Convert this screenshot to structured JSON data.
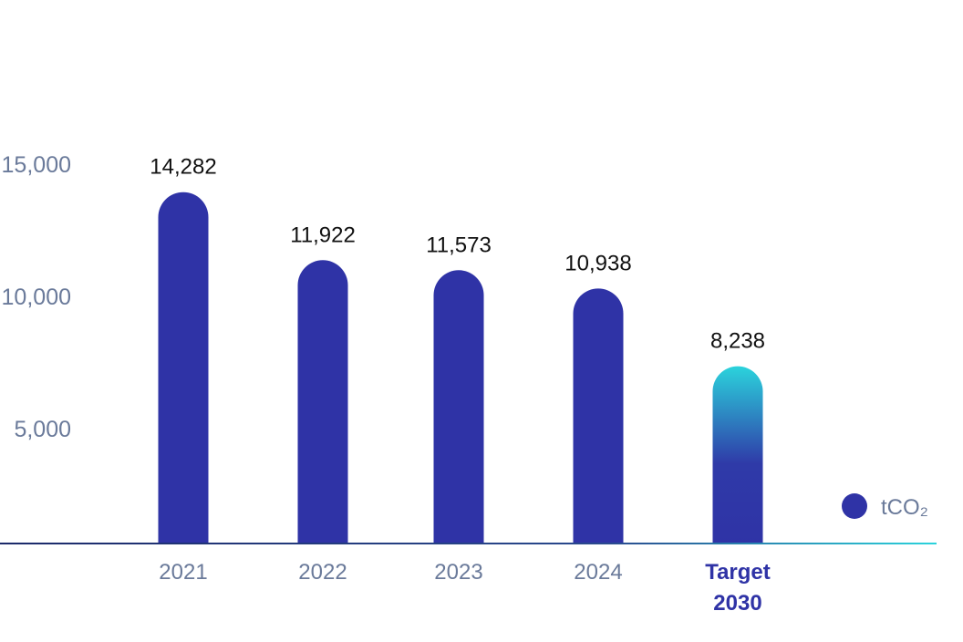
{
  "chart_data": {
    "type": "bar",
    "title": "",
    "xlabel": "",
    "ylabel": "",
    "categories": [
      "2021",
      "2022",
      "2023",
      "2024",
      "Target 2030"
    ],
    "category_lines": [
      [
        "2021"
      ],
      [
        "2022"
      ],
      [
        "2023"
      ],
      [
        "2024"
      ],
      [
        "Target",
        "2030"
      ]
    ],
    "values": [
      14282,
      11922,
      11573,
      10938,
      8238
    ],
    "value_labels": [
      "14,282",
      "11,922",
      "11,573",
      "10,938",
      "8,238"
    ],
    "yticks": [
      5000,
      10000,
      15000
    ],
    "ytick_labels": [
      "5,000",
      "10,000",
      "15,000"
    ],
    "ylim": [
      0,
      16000
    ],
    "grid": false,
    "legend": {
      "label": "tCO₂",
      "placement": "bottom-right"
    },
    "colors": {
      "bar": "#2f33a6",
      "target_top": "#2bd3dc",
      "target_bottom": "#2f33a6",
      "axis_text": "#6a7a9a",
      "target_label": "#2f33a6",
      "value_text": "#111111"
    }
  }
}
